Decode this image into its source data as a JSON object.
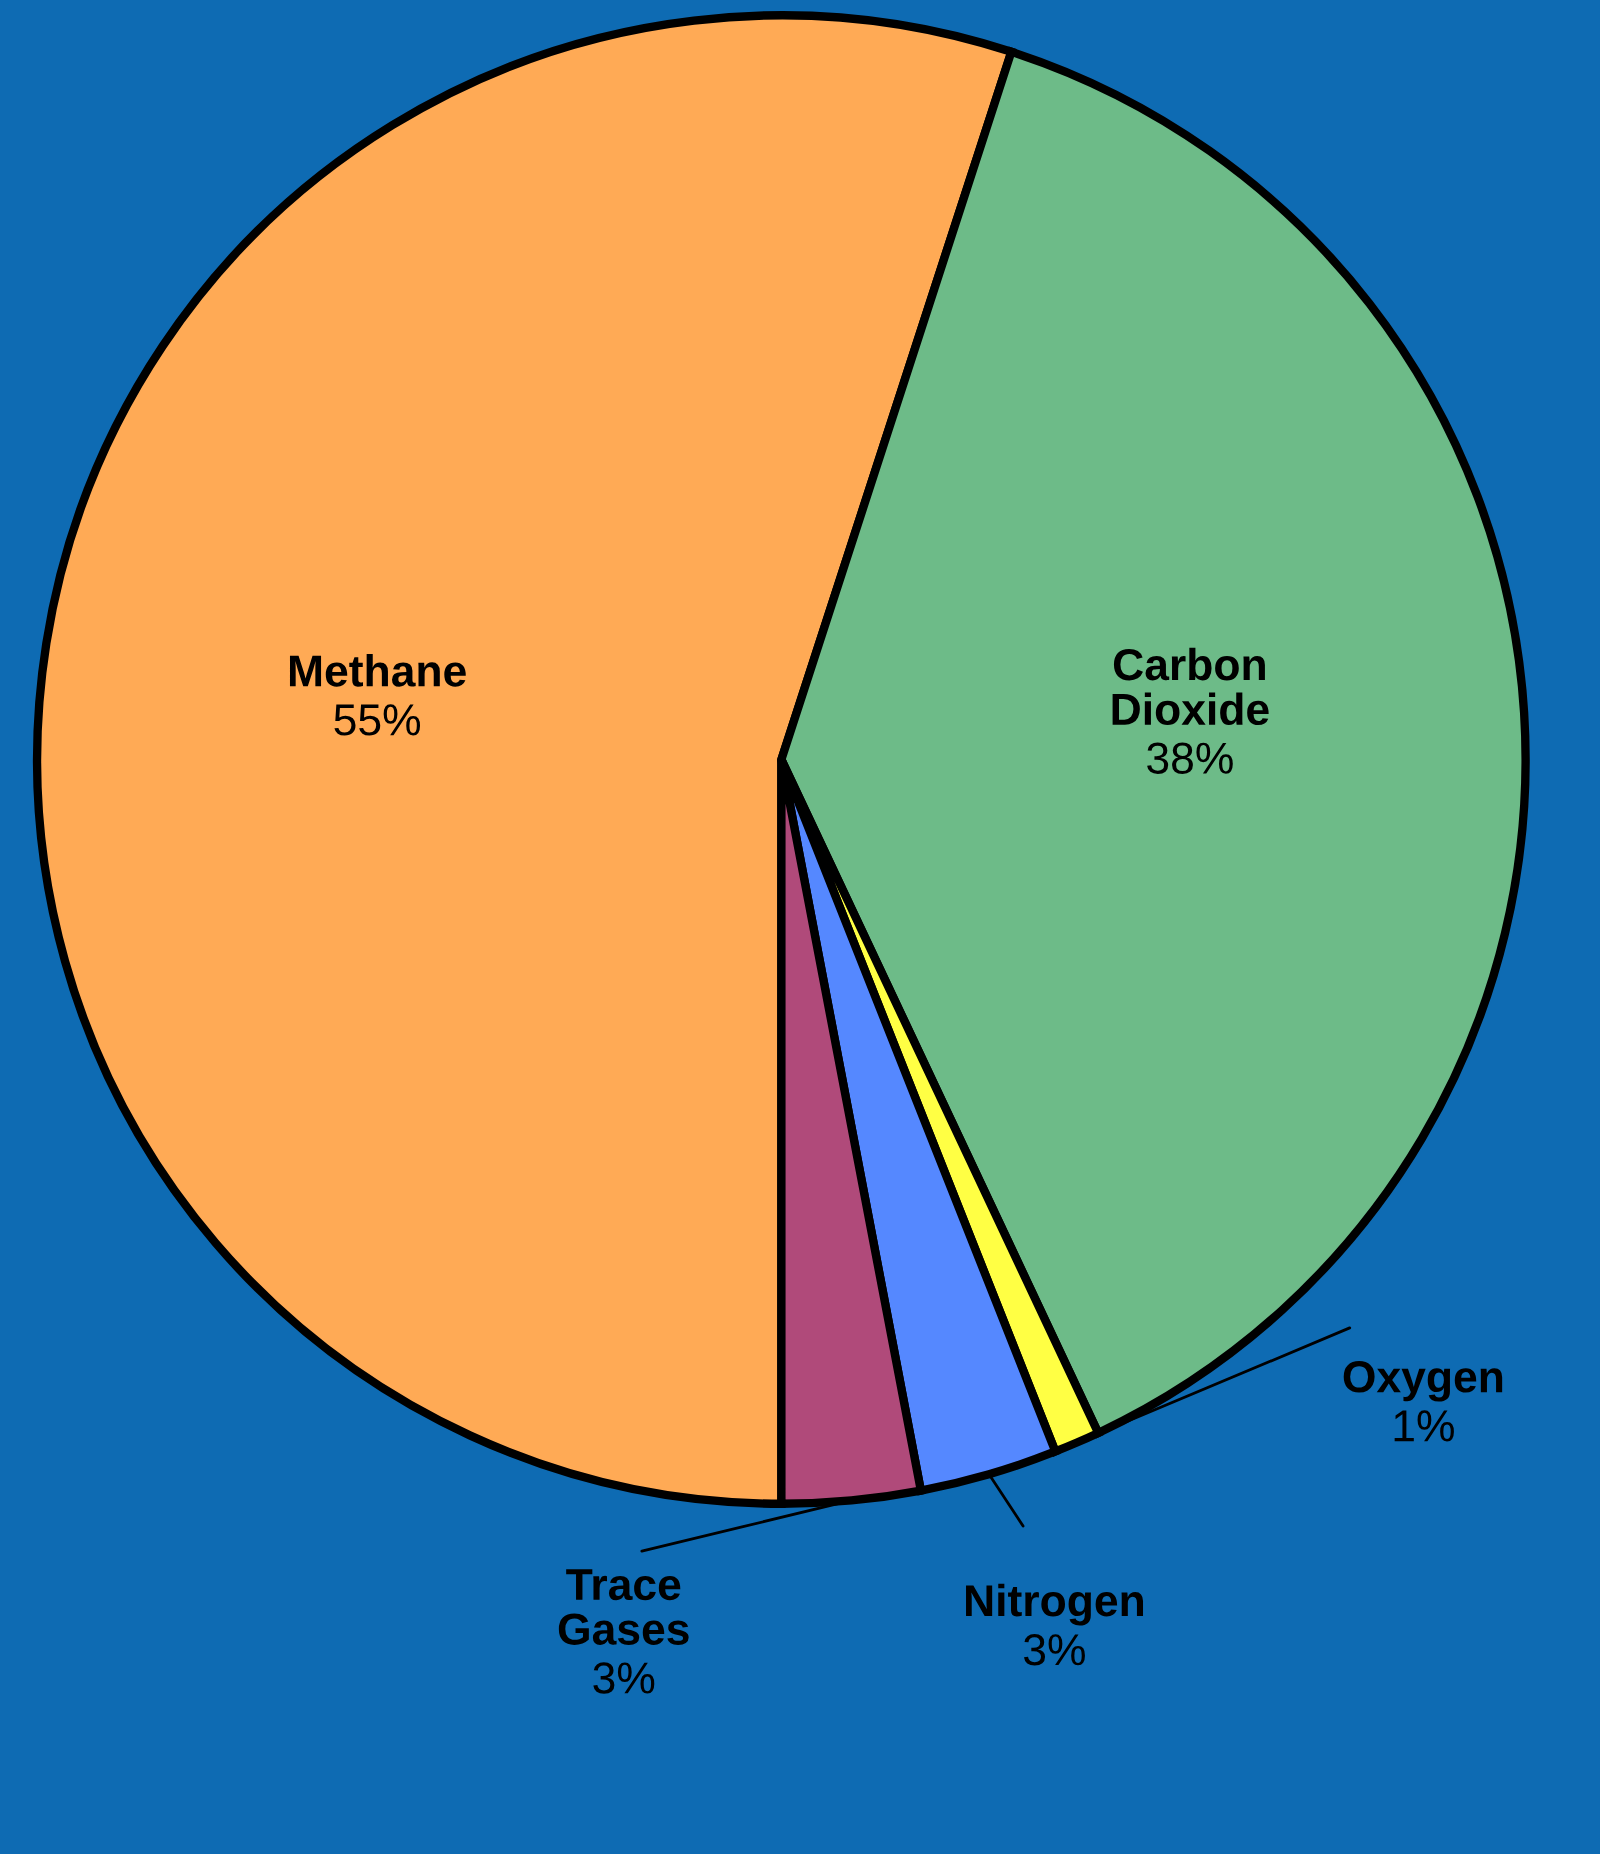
{
  "chart_data": {
    "type": "pie",
    "categories": [
      "Methane",
      "Carbon Dioxide",
      "Oxygen",
      "Nitrogen",
      "Trace Gases"
    ],
    "values": [
      55,
      38,
      1,
      3,
      3
    ],
    "value_labels": [
      "55%",
      "38%",
      "1%",
      "3%",
      "3%"
    ],
    "colors": [
      "#ffaa55",
      "#6dbb88",
      "#ffff44",
      "#5588ff",
      "#b04a7a"
    ]
  }
}
